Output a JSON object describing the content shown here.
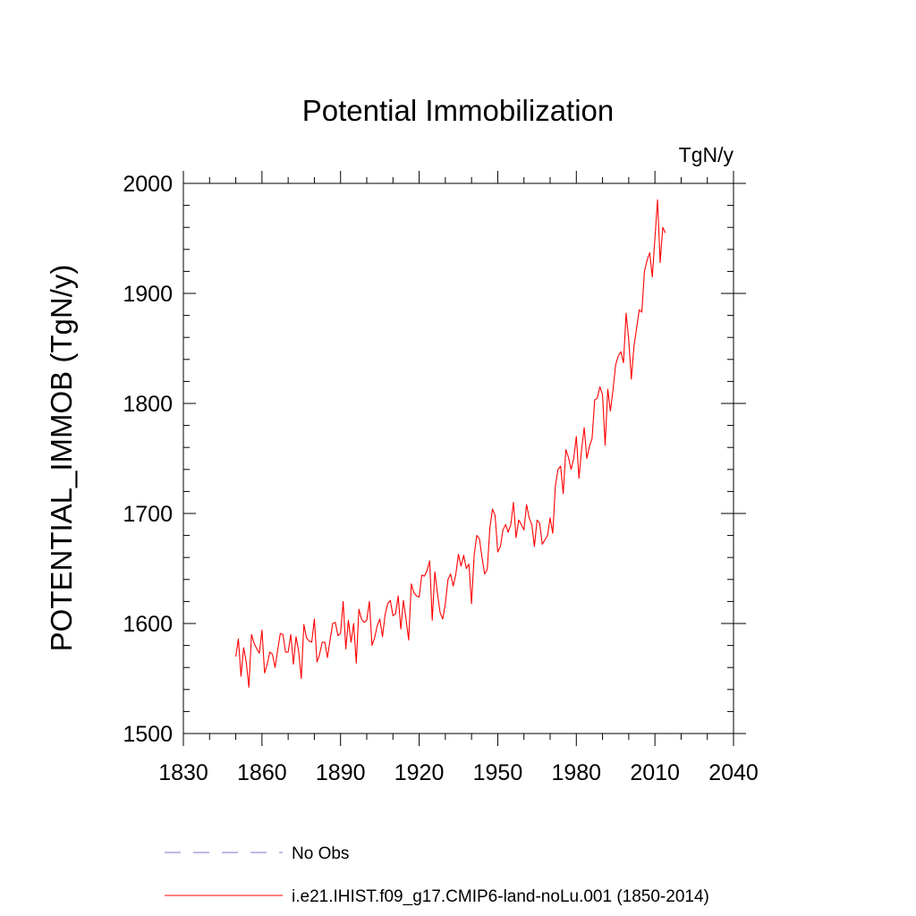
{
  "chart_data": {
    "type": "line",
    "title": "Potential Immobilization",
    "units_label": "TgN/y",
    "ylabel": "POTENTIAL_IMMOB  (TgN/y)",
    "xlabel": "",
    "xlim": [
      1830,
      2040
    ],
    "ylim": [
      1500,
      2000
    ],
    "x_ticks": [
      1830,
      1860,
      1890,
      1920,
      1950,
      1980,
      2010,
      2040
    ],
    "y_ticks": [
      1500,
      1600,
      1700,
      1800,
      1900,
      2000
    ],
    "grid": false,
    "legend_position": "bottom",
    "series": [
      {
        "name": "No Obs",
        "color": "#7777cc",
        "dash": "dashed",
        "x": [],
        "y": []
      },
      {
        "name": "i.e21.IHIST.f09_g17.CMIP6-land-noLu.001 (1850-2014)",
        "color": "#ff0000",
        "dash": "solid",
        "x": [
          1850,
          1851,
          1852,
          1853,
          1854,
          1855,
          1856,
          1857,
          1858,
          1859,
          1860,
          1861,
          1862,
          1863,
          1864,
          1865,
          1866,
          1867,
          1868,
          1869,
          1870,
          1871,
          1872,
          1873,
          1874,
          1875,
          1876,
          1877,
          1878,
          1879,
          1880,
          1881,
          1882,
          1883,
          1884,
          1885,
          1886,
          1887,
          1888,
          1889,
          1890,
          1891,
          1892,
          1893,
          1894,
          1895,
          1896,
          1897,
          1898,
          1899,
          1900,
          1901,
          1902,
          1903,
          1904,
          1905,
          1906,
          1907,
          1908,
          1909,
          1910,
          1911,
          1912,
          1913,
          1914,
          1915,
          1916,
          1917,
          1918,
          1919,
          1920,
          1921,
          1922,
          1923,
          1924,
          1925,
          1926,
          1927,
          1928,
          1929,
          1930,
          1931,
          1932,
          1933,
          1934,
          1935,
          1936,
          1937,
          1938,
          1939,
          1940,
          1941,
          1942,
          1943,
          1944,
          1945,
          1946,
          1947,
          1948,
          1949,
          1950,
          1951,
          1952,
          1953,
          1954,
          1955,
          1956,
          1957,
          1958,
          1959,
          1960,
          1961,
          1962,
          1963,
          1964,
          1965,
          1966,
          1967,
          1968,
          1969,
          1970,
          1971,
          1972,
          1973,
          1974,
          1975,
          1976,
          1977,
          1978,
          1979,
          1980,
          1981,
          1982,
          1983,
          1984,
          1985,
          1986,
          1987,
          1988,
          1989,
          1990,
          1991,
          1992,
          1993,
          1994,
          1995,
          1996,
          1997,
          1998,
          1999,
          2000,
          2001,
          2002,
          2003,
          2004,
          2005,
          2006,
          2007,
          2008,
          2009,
          2010,
          2011,
          2012,
          2013,
          2014
        ],
        "y": [
          1570,
          1586,
          1552,
          1578,
          1565,
          1542,
          1590,
          1582,
          1577,
          1573,
          1594,
          1555,
          1563,
          1574,
          1572,
          1560,
          1576,
          1591,
          1590,
          1574,
          1574,
          1590,
          1563,
          1588,
          1575,
          1550,
          1599,
          1587,
          1584,
          1583,
          1604,
          1565,
          1572,
          1583,
          1583,
          1569,
          1585,
          1600,
          1601,
          1589,
          1591,
          1620,
          1577,
          1603,
          1583,
          1600,
          1564,
          1613,
          1604,
          1601,
          1603,
          1620,
          1580,
          1587,
          1598,
          1604,
          1588,
          1608,
          1618,
          1621,
          1607,
          1609,
          1625,
          1595,
          1621,
          1604,
          1585,
          1636,
          1628,
          1625,
          1624,
          1644,
          1643,
          1648,
          1657,
          1603,
          1647,
          1627,
          1610,
          1604,
          1618,
          1640,
          1645,
          1634,
          1645,
          1663,
          1652,
          1662,
          1650,
          1654,
          1618,
          1662,
          1680,
          1677,
          1660,
          1645,
          1649,
          1687,
          1704,
          1698,
          1665,
          1670,
          1685,
          1690,
          1683,
          1690,
          1710,
          1678,
          1694,
          1690,
          1685,
          1708,
          1696,
          1690,
          1670,
          1694,
          1691,
          1672,
          1676,
          1680,
          1696,
          1682,
          1725,
          1740,
          1743,
          1718,
          1758,
          1751,
          1740,
          1750,
          1770,
          1732,
          1758,
          1778,
          1750,
          1761,
          1768,
          1803,
          1805,
          1815,
          1808,
          1762,
          1813,
          1793,
          1812,
          1835,
          1843,
          1847,
          1837,
          1882,
          1858,
          1822,
          1852,
          1868,
          1885,
          1883,
          1920,
          1930,
          1937,
          1915,
          1950,
          1985,
          1928,
          1960,
          1955
        ]
      }
    ]
  }
}
